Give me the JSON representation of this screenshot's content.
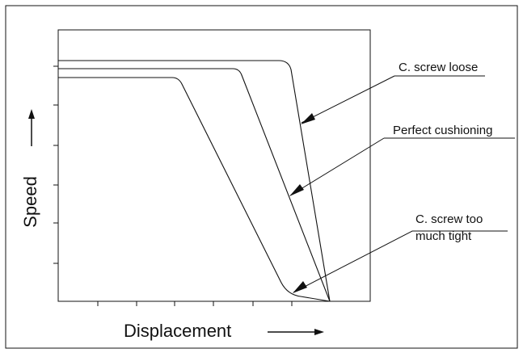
{
  "axes": {
    "x_label": "Displacement",
    "y_label": "Speed"
  },
  "annotations": [
    {
      "text_lines": [
        "C. screw loose"
      ]
    },
    {
      "text_lines": [
        "Perfect cushioning"
      ]
    },
    {
      "text_lines": [
        "C. screw too",
        "much tight"
      ]
    }
  ],
  "colors": {
    "line": "#111111",
    "background": "#ffffff"
  }
}
